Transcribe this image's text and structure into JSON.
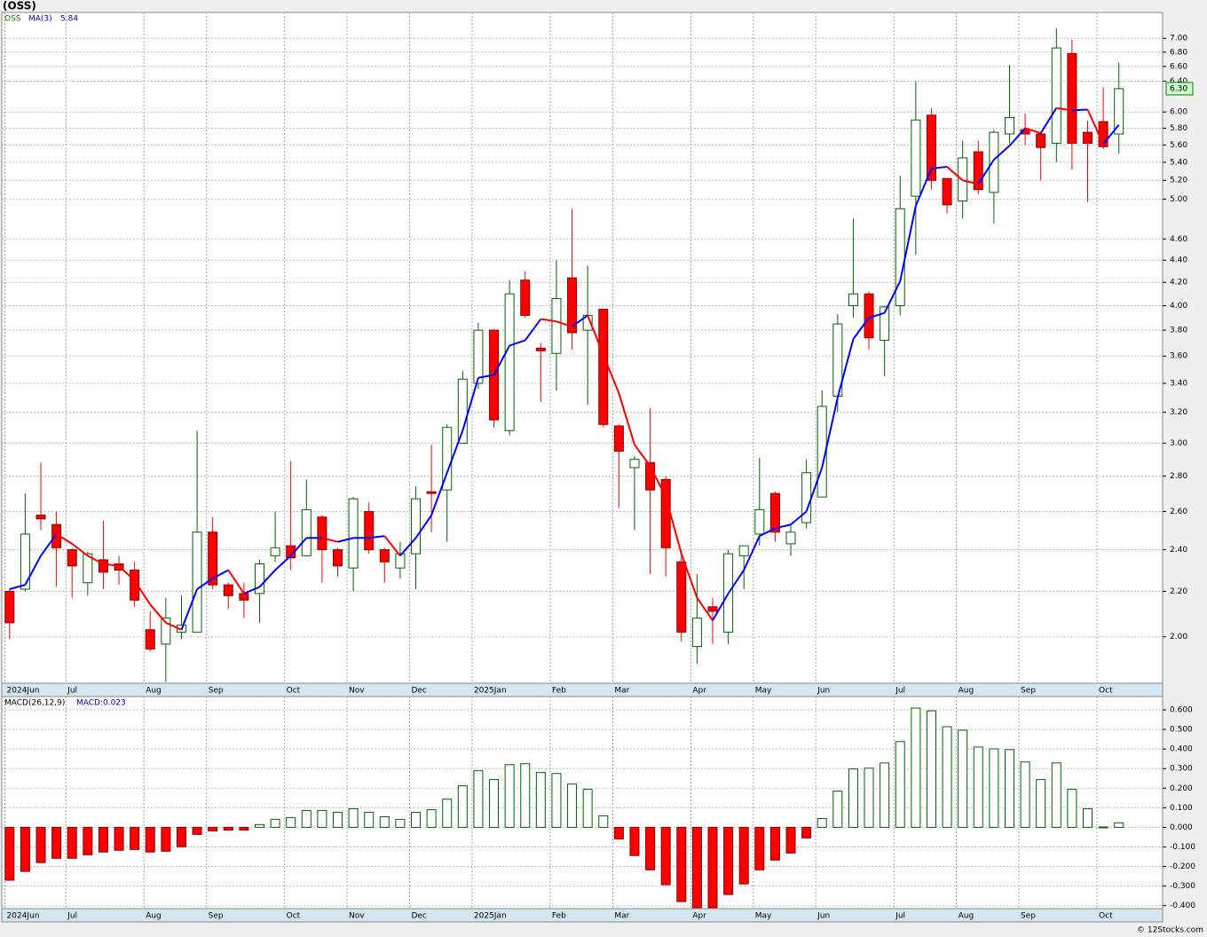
{
  "chart_data": [
    {
      "type": "candlestick",
      "title": "(OSS)",
      "name": "OSS",
      "name_color": "#008000",
      "log": true,
      "grid": true,
      "xlim": [
        -0.5,
        73.8
      ],
      "ylim": [
        1.815,
        7.39
      ],
      "up_color": "#006400",
      "down_color": "#ff0000",
      "xticks": [
        {
          "value": -0.3,
          "label": "2024Jun"
        },
        {
          "value": 3.6,
          "label": "Jul"
        },
        {
          "value": 8.6,
          "label": "Aug"
        },
        {
          "value": 12.6,
          "label": "Sep"
        },
        {
          "value": 17.6,
          "label": "Oct"
        },
        {
          "value": 21.6,
          "label": "Nov"
        },
        {
          "value": 25.6,
          "label": "Dec"
        },
        {
          "value": 29.6,
          "label": "2025Jan"
        },
        {
          "value": 34.6,
          "label": "Feb"
        },
        {
          "value": 38.6,
          "label": "Mar"
        },
        {
          "value": 43.6,
          "label": "Apr"
        },
        {
          "value": 47.6,
          "label": "May"
        },
        {
          "value": 51.6,
          "label": "Jun"
        },
        {
          "value": 56.6,
          "label": "Jul"
        },
        {
          "value": 60.6,
          "label": "Aug"
        },
        {
          "value": 64.6,
          "label": "Sep"
        },
        {
          "value": 69.6,
          "label": "Oct"
        }
      ],
      "yticks": [
        {
          "value": 2,
          "label": "2.00"
        },
        {
          "value": 2.2,
          "label": "2.20"
        },
        {
          "value": 2.4,
          "label": "2.40"
        },
        {
          "value": 2.6,
          "label": "2.60"
        },
        {
          "value": 2.8,
          "label": "2.80"
        },
        {
          "value": 3,
          "label": "3.00"
        },
        {
          "value": 3.2,
          "label": "3.20"
        },
        {
          "value": 3.4,
          "label": "3.40"
        },
        {
          "value": 3.6,
          "label": "3.60"
        },
        {
          "value": 3.8,
          "label": "3.80"
        },
        {
          "value": 4,
          "label": "4.00"
        },
        {
          "value": 4.2,
          "label": "4.20"
        },
        {
          "value": 4.4,
          "label": "4.40"
        },
        {
          "value": 4.6,
          "label": "4.60"
        },
        {
          "value": 5,
          "label": "5.00"
        },
        {
          "value": 5.2,
          "label": "5.20"
        },
        {
          "value": 5.4,
          "label": "5.40"
        },
        {
          "value": 5.6,
          "label": "5.60"
        },
        {
          "value": 5.8,
          "label": "5.80"
        },
        {
          "value": 6,
          "label": "6.00"
        },
        {
          "value": 6.4,
          "label": "6.40"
        },
        {
          "value": 6.6,
          "label": "6.60"
        },
        {
          "value": 6.8,
          "label": "6.80"
        },
        {
          "value": 7,
          "label": "7.00"
        }
      ],
      "open": [
        2.2,
        2.21,
        2.58,
        2.53,
        2.4,
        2.24,
        2.35,
        2.33,
        2.3,
        2.03,
        1.97,
        2.02,
        2.02,
        2.49,
        2.23,
        2.19,
        2.19,
        2.37,
        2.42,
        2.37,
        2.57,
        2.4,
        2.31,
        2.6,
        2.4,
        2.31,
        2.38,
        2.71,
        2.72,
        3.0,
        3.4,
        3.8,
        3.08,
        4.22,
        3.66,
        3.62,
        4.24,
        3.8,
        3.97,
        3.11,
        2.85,
        2.88,
        2.78,
        2.34,
        1.96,
        2.13,
        2.02,
        2.37,
        2.48,
        2.7,
        2.43,
        2.54,
        2.68,
        3.31,
        4.0,
        4.1,
        3.72,
        4.0,
        5.03,
        5.96,
        5.22,
        4.98,
        5.52,
        5.07,
        5.73,
        5.78,
        5.73,
        5.62,
        6.78,
        5.75,
        5.88,
        5.73
      ],
      "high": [
        2.21,
        2.7,
        2.88,
        2.6,
        2.41,
        2.39,
        2.55,
        2.37,
        2.34,
        2.11,
        2.17,
        2.18,
        3.08,
        2.57,
        2.24,
        2.24,
        2.35,
        2.6,
        2.89,
        2.78,
        2.58,
        2.41,
        2.68,
        2.65,
        2.41,
        2.44,
        2.74,
        2.99,
        3.12,
        3.49,
        3.86,
        3.81,
        4.22,
        4.3,
        3.7,
        4.4,
        4.9,
        4.35,
        3.97,
        3.12,
        2.92,
        3.23,
        2.8,
        2.4,
        2.28,
        2.17,
        2.4,
        2.42,
        2.91,
        2.71,
        2.53,
        2.9,
        3.35,
        3.93,
        4.8,
        4.12,
        4.0,
        5.25,
        6.4,
        6.05,
        5.22,
        5.65,
        5.65,
        5.78,
        6.62,
        5.98,
        5.75,
        7.15,
        6.98,
        5.89,
        6.32,
        6.65
      ],
      "low": [
        1.99,
        2.2,
        2.5,
        2.22,
        2.17,
        2.18,
        2.21,
        2.23,
        2.13,
        1.94,
        1.82,
        1.99,
        2.02,
        2.21,
        2.12,
        2.08,
        2.06,
        2.34,
        2.3,
        2.37,
        2.24,
        2.27,
        2.2,
        2.38,
        2.24,
        2.26,
        2.21,
        2.49,
        2.44,
        3.0,
        3.36,
        3.1,
        3.05,
        3.9,
        3.27,
        3.35,
        3.65,
        3.25,
        3.1,
        2.62,
        2.5,
        2.28,
        2.27,
        1.98,
        1.89,
        1.97,
        1.97,
        2.21,
        2.42,
        2.44,
        2.37,
        2.51,
        2.68,
        3.2,
        3.9,
        3.65,
        3.45,
        3.92,
        4.45,
        5.1,
        4.85,
        4.8,
        5.05,
        4.75,
        5.62,
        5.6,
        5.2,
        5.4,
        5.32,
        4.97,
        5.55,
        5.5
      ],
      "close": [
        2.06,
        2.48,
        2.56,
        2.41,
        2.32,
        2.38,
        2.29,
        2.3,
        2.16,
        1.95,
        2.08,
        2.05,
        2.49,
        2.23,
        2.18,
        2.16,
        2.33,
        2.41,
        2.36,
        2.61,
        2.4,
        2.32,
        2.67,
        2.4,
        2.34,
        2.38,
        2.67,
        2.7,
        3.1,
        3.43,
        3.8,
        3.15,
        4.1,
        3.92,
        3.64,
        4.06,
        3.78,
        3.92,
        3.12,
        2.95,
        2.9,
        2.72,
        2.41,
        2.02,
        2.08,
        2.11,
        2.38,
        2.42,
        2.61,
        2.49,
        2.49,
        2.82,
        3.24,
        3.85,
        4.1,
        3.74,
        3.99,
        4.9,
        5.9,
        5.2,
        4.94,
        5.45,
        5.1,
        5.75,
        5.93,
        5.73,
        5.57,
        6.86,
        5.62,
        5.62,
        5.58,
        6.3
      ],
      "close_label": "6.30",
      "close_label_color": "#008000",
      "ma": {
        "name": "MA(3)",
        "up_color": "#0000ff",
        "down_color": "#ff0000",
        "label_color": "#0000cc",
        "values": [
          2.21,
          2.23,
          2.37,
          2.48,
          2.43,
          2.37,
          2.33,
          2.32,
          2.25,
          2.14,
          2.06,
          2.03,
          2.21,
          2.26,
          2.3,
          2.19,
          2.22,
          2.3,
          2.37,
          2.46,
          2.46,
          2.44,
          2.46,
          2.46,
          2.47,
          2.37,
          2.46,
          2.58,
          2.82,
          3.08,
          3.44,
          3.46,
          3.68,
          3.72,
          3.89,
          3.87,
          3.83,
          3.92,
          3.61,
          3.33,
          2.99,
          2.86,
          2.68,
          2.38,
          2.17,
          2.07,
          2.19,
          2.3,
          2.47,
          2.51,
          2.53,
          2.6,
          2.85,
          3.3,
          3.73,
          3.9,
          3.94,
          4.21,
          4.93,
          5.33,
          5.35,
          5.2,
          5.16,
          5.43,
          5.59,
          5.8,
          5.74,
          6.05,
          6.02,
          6.03,
          5.61,
          5.84
        ]
      }
    },
    {
      "type": "histogram-bar",
      "name": "MACD(26,12,9)",
      "value_label": "MACD:0.023",
      "label_color": "#0000cc",
      "grid": true,
      "xlim": [
        -0.5,
        73.8
      ],
      "ylim": [
        -0.415,
        0.668
      ],
      "up_color": "#006400",
      "down_color": "#ff0000",
      "xticks": [
        {
          "value": -0.3,
          "label": "2024Jun"
        },
        {
          "value": 3.6,
          "label": "Jul"
        },
        {
          "value": 8.6,
          "label": "Aug"
        },
        {
          "value": 12.6,
          "label": "Sep"
        },
        {
          "value": 17.6,
          "label": "Oct"
        },
        {
          "value": 21.6,
          "label": "Nov"
        },
        {
          "value": 25.6,
          "label": "Dec"
        },
        {
          "value": 29.6,
          "label": "2025Jan"
        },
        {
          "value": 34.6,
          "label": "Feb"
        },
        {
          "value": 38.6,
          "label": "Mar"
        },
        {
          "value": 43.6,
          "label": "Apr"
        },
        {
          "value": 47.6,
          "label": "May"
        },
        {
          "value": 51.6,
          "label": "Jun"
        },
        {
          "value": 56.6,
          "label": "Jul"
        },
        {
          "value": 60.6,
          "label": "Aug"
        },
        {
          "value": 64.6,
          "label": "Sep"
        },
        {
          "value": 69.6,
          "label": "Oct"
        }
      ],
      "yticks": [
        {
          "value": -0.4,
          "label": "-0.400"
        },
        {
          "value": -0.3,
          "label": "-0.300"
        },
        {
          "value": -0.2,
          "label": "-0.200"
        },
        {
          "value": -0.1,
          "label": "-0.100"
        },
        {
          "value": 0,
          "label": "0.000"
        },
        {
          "value": 0.1,
          "label": "0.100"
        },
        {
          "value": 0.2,
          "label": "0.200"
        },
        {
          "value": 0.3,
          "label": "0.300"
        },
        {
          "value": 0.4,
          "label": "0.400"
        },
        {
          "value": 0.5,
          "label": "0.500"
        },
        {
          "value": 0.6,
          "label": "0.600"
        }
      ],
      "values": [
        -0.27,
        -0.225,
        -0.18,
        -0.158,
        -0.158,
        -0.14,
        -0.126,
        -0.117,
        -0.113,
        -0.126,
        -0.122,
        -0.099,
        -0.036,
        -0.018,
        -0.014,
        -0.014,
        0.014,
        0.041,
        0.05,
        0.086,
        0.086,
        0.077,
        0.095,
        0.077,
        0.054,
        0.041,
        0.077,
        0.09,
        0.144,
        0.212,
        0.289,
        0.244,
        0.32,
        0.325,
        0.28,
        0.275,
        0.221,
        0.194,
        0.059,
        -0.059,
        -0.144,
        -0.217,
        -0.293,
        -0.379,
        -0.41,
        -0.41,
        -0.343,
        -0.289,
        -0.217,
        -0.167,
        -0.131,
        -0.054,
        0.045,
        0.185,
        0.298,
        0.302,
        0.329,
        0.438,
        0.609,
        0.595,
        0.514,
        0.496,
        0.41,
        0.401,
        0.397,
        0.334,
        0.244,
        0.329,
        0.194,
        0.095,
        0.002,
        0.023
      ]
    }
  ],
  "footer": "© 12Stocks.com"
}
